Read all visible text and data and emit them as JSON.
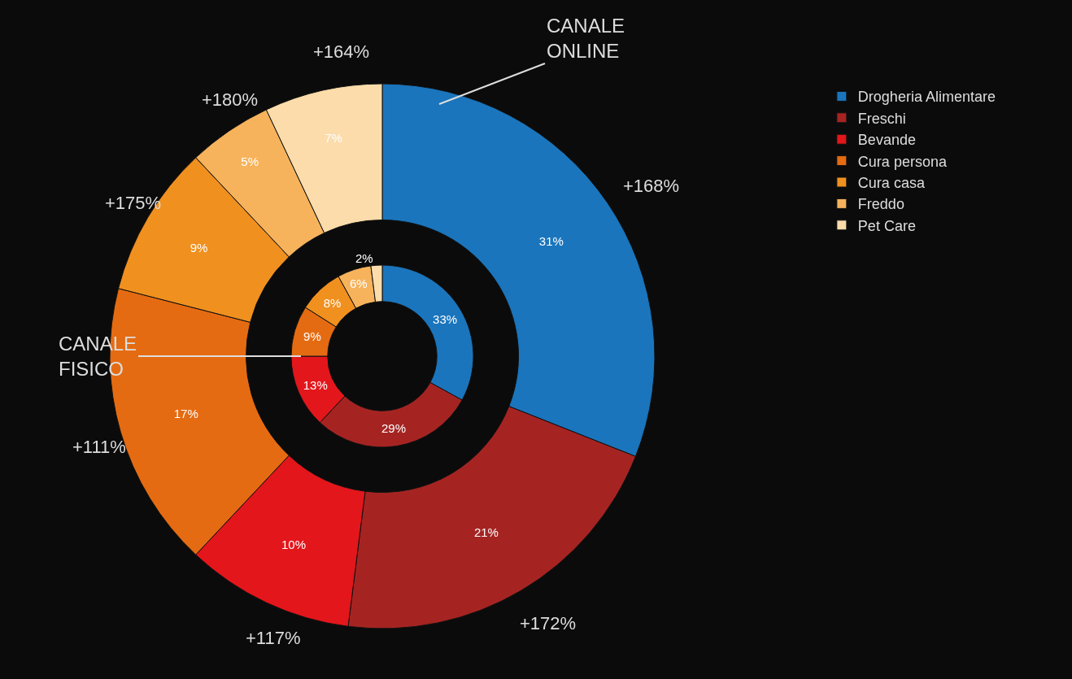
{
  "chart_data": {
    "type": "donut",
    "categories": [
      "Drogheria Alimentare",
      "Freschi",
      "Bevande",
      "Cura persona",
      "Cura casa",
      "Freddo",
      "Pet Care"
    ],
    "series": [
      {
        "name": "CANALE ONLINE",
        "values": [
          31,
          21,
          10,
          17,
          9,
          5,
          7
        ],
        "value_labels": [
          "31%",
          "21%",
          "10%",
          "17%",
          "9%",
          "5%",
          "7%"
        ],
        "colors": [
          "#1a75bc",
          "#a52422",
          "#e3161b",
          "#e56b12",
          "#f0901f",
          "#f6b35c",
          "#fbdcaa"
        ]
      },
      {
        "name": "CANALE FISICO",
        "values": [
          33,
          29,
          13,
          9,
          8,
          6,
          2
        ],
        "value_labels": [
          "33%",
          "29%",
          "13%",
          "9%",
          "8%",
          "6%",
          "2%"
        ],
        "colors": [
          "#1a75bc",
          "#a52422",
          "#e3161b",
          "#e56b12",
          "#f0901f",
          "#f6b35c",
          "#fbdcaa"
        ]
      }
    ],
    "annotations": [
      "+168%",
      "+172%",
      "+117%",
      "+111%",
      "+175%",
      "+180%",
      "+164%"
    ],
    "legend": "right"
  }
}
